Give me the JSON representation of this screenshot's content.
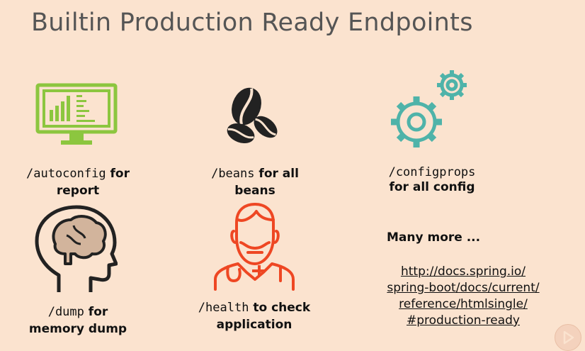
{
  "slide": {
    "title": "Builtin Production Ready Endpoints"
  },
  "endpoints": [
    {
      "path": "/autoconfig",
      "text1": " for",
      "text2": "report",
      "icon": "monitor-chart-icon"
    },
    {
      "path": "/beans",
      "text1": " for all",
      "text2": "beans",
      "icon": "coffee-beans-icon"
    },
    {
      "path": "/configprops",
      "text1": "",
      "text2": "for all config",
      "icon": "gears-icon"
    },
    {
      "path": "/dump",
      "text1": " for",
      "text2": "memory dump",
      "icon": "brain-head-icon"
    },
    {
      "path": "/health",
      "text1": " to check",
      "text2": "application",
      "icon": "doctor-icon"
    }
  ],
  "more": {
    "label": "Many more ...",
    "link_lines": [
      "http://docs.spring.io/",
      "spring-boot/docs/current/",
      "reference/htmlsingle/",
      "#production-ready"
    ]
  },
  "colors": {
    "background": "#fbe3cf",
    "title": "#555555",
    "monitor": "#8cc63f",
    "beans": "#222222",
    "gears": "#4fb3a9",
    "brain_fill": "#d2b49c",
    "doctor": "#ee4723"
  }
}
